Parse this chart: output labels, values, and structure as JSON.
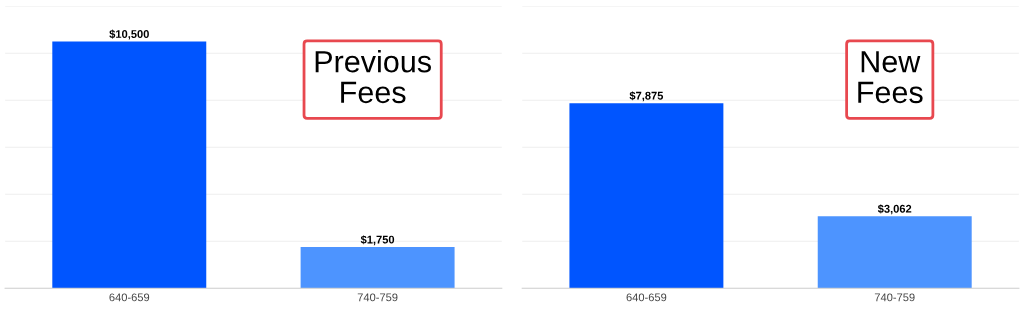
{
  "chart_data": [
    {
      "type": "bar",
      "categories": [
        "640-659",
        "740-759"
      ],
      "values": [
        10500,
        1750
      ],
      "colors": [
        "#0055ff",
        "#4d94ff"
      ],
      "value_labels": [
        "$10,500",
        "$1,750"
      ],
      "ylim": [
        0,
        12000
      ],
      "yticks": [
        {
          "value": 2000,
          "label": null
        },
        {
          "value": 4000,
          "label": null
        },
        {
          "value": 6000,
          "label": null
        },
        {
          "value": 8000,
          "label": null
        },
        {
          "value": 10000,
          "label": null
        },
        {
          "value": 12000,
          "label": null
        }
      ],
      "grid": "y",
      "tick_labels": "x",
      "annotations": [
        "Previous\nFees"
      ]
    },
    {
      "type": "bar",
      "categories": [
        "640-659",
        "740-759"
      ],
      "values": [
        7875,
        3062
      ],
      "colors": [
        "#0055ff",
        "#4d94ff"
      ],
      "value_labels": [
        "$7,875",
        "$3,062"
      ],
      "ylim": [
        0,
        12000
      ],
      "yticks": [
        {
          "value": 2000,
          "label": null
        },
        {
          "value": 4000,
          "label": null
        },
        {
          "value": 6000,
          "label": null
        },
        {
          "value": 8000,
          "label": null
        },
        {
          "value": 10000,
          "label": null
        },
        {
          "value": 12000,
          "label": null
        }
      ],
      "grid": "y",
      "tick_labels": "x",
      "annotations": [
        "New\nFees"
      ]
    }
  ]
}
